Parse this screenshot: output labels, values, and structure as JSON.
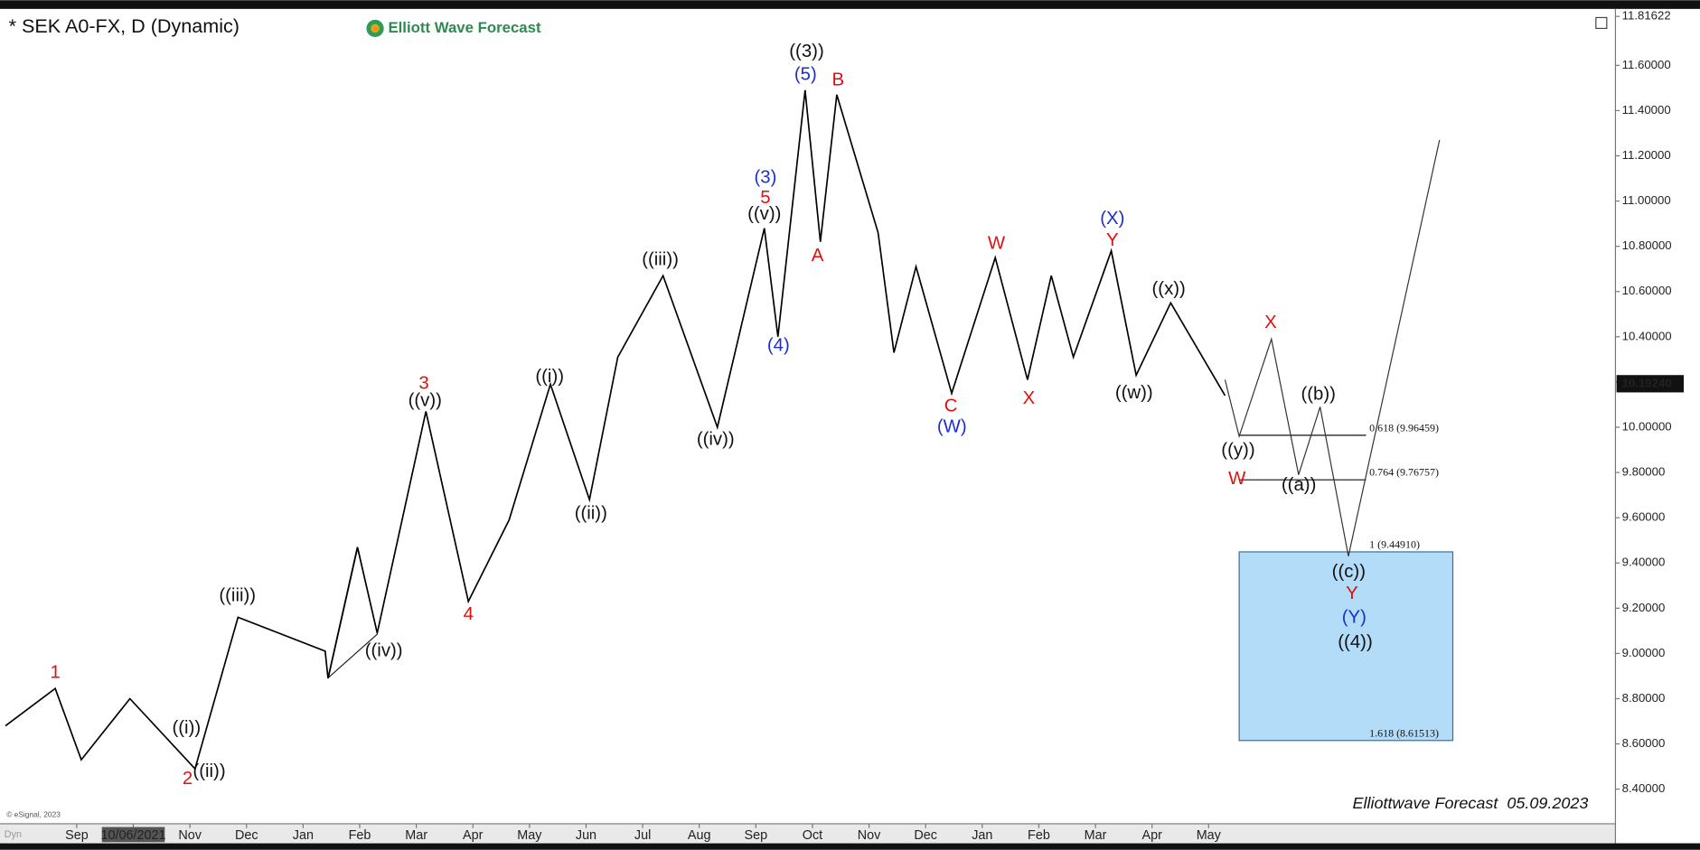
{
  "chart_data": {
    "type": "line",
    "title": "* SEK A0-FX, D (Dynamic)",
    "logo": "Elliott Wave Forecast",
    "footer": "Elliottwave Forecast  05.09.2023",
    "copyright": "© eSignal, 2023",
    "corner_label": "Dyn",
    "xlim": [
      -1.26,
      27.15
    ],
    "xticks": [
      {
        "value": 0,
        "label": "Sep"
      },
      {
        "value": 1,
        "label": "10/06/2021"
      },
      {
        "value": 2,
        "label": "Nov"
      },
      {
        "value": 3,
        "label": "Dec"
      },
      {
        "value": 4,
        "label": "Jan"
      },
      {
        "value": 5,
        "label": "Feb"
      },
      {
        "value": 6,
        "label": "Mar"
      },
      {
        "value": 7,
        "label": "Apr"
      },
      {
        "value": 8,
        "label": "May"
      },
      {
        "value": 9,
        "label": "Jun"
      },
      {
        "value": 10,
        "label": "Jul"
      },
      {
        "value": 11,
        "label": "Aug"
      },
      {
        "value": 12,
        "label": "Sep"
      },
      {
        "value": 13,
        "label": "Oct"
      },
      {
        "value": 14,
        "label": "Nov"
      },
      {
        "value": 15,
        "label": "Dec"
      },
      {
        "value": 16,
        "label": "Jan"
      },
      {
        "value": 17,
        "label": "Feb"
      },
      {
        "value": 18,
        "label": "Mar"
      },
      {
        "value": 19,
        "label": "Apr"
      },
      {
        "value": 20,
        "label": "May"
      }
    ],
    "ylim": [
      8.247,
      11.84
    ],
    "yticks": [
      {
        "value": 8.4,
        "label": "8.40000"
      },
      {
        "value": 8.6,
        "label": "8.60000"
      },
      {
        "value": 8.8,
        "label": "8.80000"
      },
      {
        "value": 9.0,
        "label": "9.00000"
      },
      {
        "value": 9.2,
        "label": "9.20000"
      },
      {
        "value": 9.4,
        "label": "9.40000"
      },
      {
        "value": 9.6,
        "label": "9.60000"
      },
      {
        "value": 9.8,
        "label": "9.80000"
      },
      {
        "value": 10.0,
        "label": "10.00000"
      },
      {
        "value": 10.2,
        "label": "10.20000"
      },
      {
        "value": 10.4,
        "label": "10.40000"
      },
      {
        "value": 10.6,
        "label": "10.60000"
      },
      {
        "value": 10.8,
        "label": "10.80000"
      },
      {
        "value": 11.0,
        "label": "11.00000"
      },
      {
        "value": 11.2,
        "label": "11.20000"
      },
      {
        "value": 11.4,
        "label": "11.40000"
      },
      {
        "value": 11.6,
        "label": "11.60000"
      }
    ],
    "high_marker": {
      "value": 11.81622,
      "label": "11.81622"
    },
    "last_price": {
      "value": 10.1924,
      "label": "10.19240"
    },
    "series": [
      {
        "color": "#000000",
        "width": 1.4,
        "x": [
          -1.26,
          -0.38,
          0.08,
          0.94,
          2.09,
          2.85,
          4.39,
          4.44,
          4.96,
          5.31,
          6.17,
          6.92,
          7.64,
          8.37,
          9.06,
          9.56,
          10.36,
          11.32,
          12.15,
          12.39,
          12.87,
          13.14,
          13.43,
          14.16,
          14.44,
          14.83,
          15.46,
          16.23,
          16.8,
          17.22,
          17.61,
          18.28,
          18.72,
          19.33,
          20.29
        ],
        "values": [
          8.68,
          8.845,
          8.53,
          8.8,
          8.49,
          9.16,
          9.01,
          8.89,
          9.47,
          9.09,
          10.07,
          9.23,
          9.59,
          10.19,
          9.68,
          10.31,
          10.67,
          10.0,
          10.88,
          10.4,
          11.49,
          10.82,
          11.47,
          10.86,
          10.33,
          10.71,
          10.15,
          10.75,
          10.21,
          10.67,
          10.31,
          10.78,
          10.23,
          10.55,
          10.14
        ]
      },
      {
        "color": "#333333",
        "width": 1,
        "x": [
          20.29,
          20.54,
          21.11,
          21.59,
          21.97,
          22.47,
          24.08
        ],
        "values": [
          10.21,
          9.96,
          10.39,
          9.79,
          10.09,
          9.43,
          11.27
        ]
      }
    ],
    "fib_levels": [
      {
        "value": 9.96459,
        "label": "0.618 (9.96459)"
      },
      {
        "value": 9.76757,
        "label": "0.764 (9.76757)"
      },
      {
        "value": 9.4491,
        "label": "1 (9.44910)"
      },
      {
        "value": 8.61513,
        "label": "1.618 (8.61513)"
      }
    ],
    "target_box_color": "#b3dcf9",
    "wave_labels": [
      "((3))",
      "((v))",
      "((v))",
      "((i))",
      "((i))",
      "((ii))",
      "((ii))",
      "((iii))",
      "((iii))",
      "((iv))",
      "((iv))",
      "((w))",
      "((x))",
      "((y))",
      "((a))",
      "((b))",
      "((c))",
      "((4))",
      "1",
      "2",
      "3",
      "4",
      "5",
      "A",
      "B",
      "C",
      "W",
      "X",
      "Y",
      "X",
      "W",
      "Y",
      "(5)",
      "(3)",
      "(4)",
      "(W)",
      "(X)",
      "(Y)"
    ]
  }
}
